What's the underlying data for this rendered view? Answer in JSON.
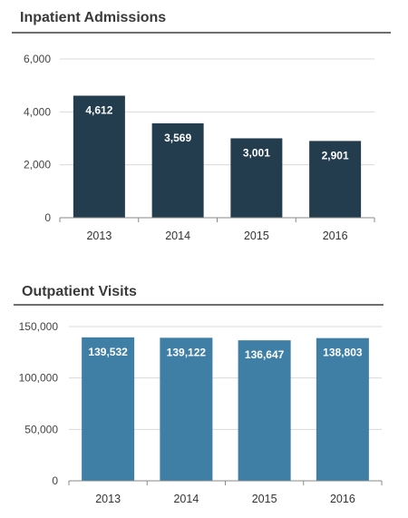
{
  "chart_data": [
    {
      "type": "bar",
      "title": "Inpatient Admissions",
      "categories": [
        "2013",
        "2014",
        "2015",
        "2016"
      ],
      "values": [
        4612,
        3569,
        3001,
        2901
      ],
      "data_labels": [
        "4,612",
        "3,569",
        "3,001",
        "2,901"
      ],
      "yticks": [
        0,
        2000,
        4000,
        6000
      ],
      "ytick_labels": [
        "0",
        "2,000",
        "4,000",
        "6,000"
      ],
      "ylim": [
        0,
        6000
      ],
      "grid": true,
      "color": "#233d4f"
    },
    {
      "type": "bar",
      "title": "Outpatient Visits",
      "categories": [
        "2013",
        "2014",
        "2015",
        "2016"
      ],
      "values": [
        139532,
        139122,
        136647,
        138803
      ],
      "data_labels": [
        "139,532",
        "139,122",
        "136,647",
        "138,803"
      ],
      "yticks": [
        0,
        50000,
        100000,
        150000
      ],
      "ytick_labels": [
        "0",
        "50,000",
        "100,000",
        "150,000"
      ],
      "ylim": [
        0,
        150000
      ],
      "grid": true,
      "color": "#3f7fa6"
    }
  ]
}
